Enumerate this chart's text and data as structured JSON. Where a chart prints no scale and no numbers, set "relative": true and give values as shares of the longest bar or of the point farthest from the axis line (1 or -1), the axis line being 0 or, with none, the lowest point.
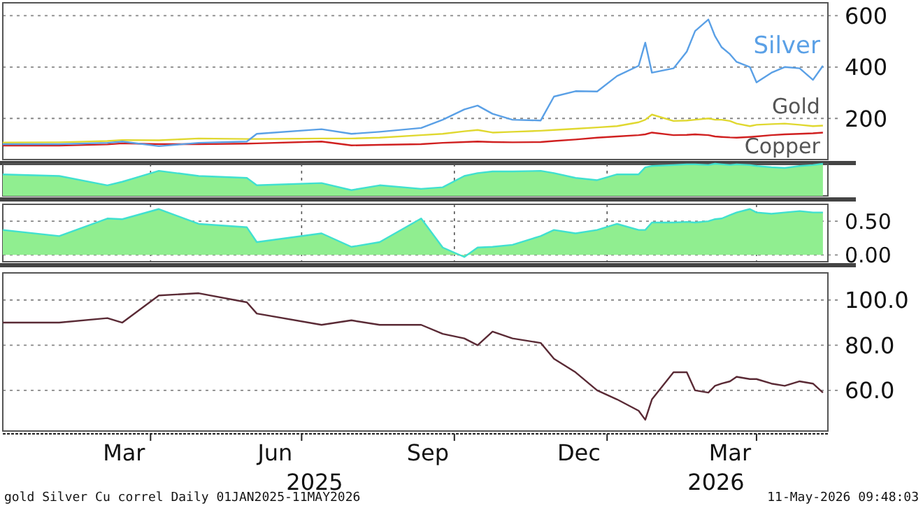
{
  "chart_data": [
    {
      "type": "line",
      "xlim": [
        "2025-01-02",
        "2026-05-14"
      ],
      "ylim": [
        40,
        650
      ],
      "yticks": [
        200,
        400,
        600
      ],
      "grid": "y",
      "tick_labels": "y",
      "x": [
        "2025-01-02",
        "2025-02-05",
        "2025-03-06",
        "2025-03-15",
        "2025-04-06",
        "2025-04-30",
        "2025-05-29",
        "2025-06-04",
        "2025-07-13",
        "2025-07-31",
        "2025-08-17",
        "2025-09-11",
        "2025-09-24",
        "2025-10-07",
        "2025-10-15",
        "2025-10-24",
        "2025-11-05",
        "2025-11-22",
        "2025-11-30",
        "2025-12-13",
        "2025-12-26",
        "2026-01-07",
        "2026-01-20",
        "2026-01-24",
        "2026-01-28",
        "2026-02-10",
        "2026-02-18",
        "2026-02-23",
        "2026-03-03",
        "2026-03-07",
        "2026-03-11",
        "2026-03-16",
        "2026-03-20",
        "2026-03-28",
        "2026-04-01",
        "2026-04-10",
        "2026-04-18",
        "2026-04-27",
        "2026-05-05",
        "2026-05-11"
      ],
      "series": [
        {
          "name": "Silver",
          "color": "#5aa0e6",
          "values": [
            100,
            100,
            105,
            110,
            92,
            105,
            110,
            140,
            158,
            140,
            148,
            163,
            195,
            235,
            250,
            218,
            195,
            192,
            285,
            306,
            305,
            365,
            405,
            495,
            378,
            395,
            460,
            540,
            585,
            520,
            477,
            450,
            420,
            400,
            340,
            378,
            400,
            395,
            350,
            405
          ]
        },
        {
          "name": "Gold",
          "color": "#e0d830",
          "values": [
            106,
            107,
            112,
            116,
            115,
            122,
            120,
            120,
            122,
            122,
            125,
            135,
            140,
            150,
            155,
            145,
            148,
            152,
            155,
            160,
            165,
            170,
            185,
            195,
            215,
            190,
            192,
            195,
            200,
            195,
            195,
            190,
            180,
            170,
            175,
            178,
            180,
            175,
            170,
            172
          ]
        },
        {
          "name": "Copper",
          "color": "#d02020",
          "values": [
            94,
            94,
            99,
            103,
            100,
            100,
            102,
            103,
            110,
            95,
            97,
            100,
            105,
            108,
            110,
            108,
            107,
            108,
            112,
            118,
            125,
            130,
            135,
            138,
            145,
            135,
            136,
            138,
            135,
            130,
            128,
            126,
            125,
            128,
            130,
            135,
            138,
            140,
            142,
            145
          ]
        }
      ]
    },
    {
      "type": "area",
      "relative": true,
      "xlim": [
        "2025-01-02",
        "2026-05-14"
      ],
      "grid": "x",
      "tick_labels": false,
      "xticks": [
        {
          "value": "2025-04-01",
          "label": null
        },
        {
          "value": "2025-07-01",
          "label": null
        },
        {
          "value": "2025-10-01",
          "label": null
        },
        {
          "value": "2026-01-01",
          "label": null
        },
        {
          "value": "2026-04-01",
          "label": null
        }
      ],
      "x": [
        "2025-01-02",
        "2025-02-05",
        "2025-03-06",
        "2025-03-15",
        "2025-04-06",
        "2025-04-30",
        "2025-05-29",
        "2025-06-04",
        "2025-07-13",
        "2025-07-31",
        "2025-08-17",
        "2025-09-11",
        "2025-09-24",
        "2025-10-07",
        "2025-10-15",
        "2025-10-24",
        "2025-11-05",
        "2025-11-22",
        "2025-11-30",
        "2025-12-13",
        "2025-12-26",
        "2026-01-07",
        "2026-01-20",
        "2026-01-24",
        "2026-01-28",
        "2026-02-10",
        "2026-02-18",
        "2026-02-23",
        "2026-03-03",
        "2026-03-07",
        "2026-03-11",
        "2026-03-16",
        "2026-03-20",
        "2026-03-28",
        "2026-04-01",
        "2026-04-10",
        "2026-04-18",
        "2026-04-27",
        "2026-05-05",
        "2026-05-11"
      ],
      "series": [
        {
          "color": "#90ee90",
          "values": [
            0.67,
            0.62,
            0.33,
            0.44,
            0.78,
            0.62,
            0.56,
            0.33,
            0.4,
            0.18,
            0.33,
            0.22,
            0.27,
            0.62,
            0.71,
            0.76,
            0.76,
            0.78,
            0.71,
            0.56,
            0.49,
            0.67,
            0.67,
            0.89,
            0.93,
            0.96,
            0.98,
            0.98,
            0.96,
            1,
            0.98,
            0.96,
            0.98,
            0.96,
            0.93,
            0.89,
            0.87,
            0.93,
            0.96,
            1
          ]
        }
      ]
    },
    {
      "type": "area",
      "xlim": [
        "2025-01-02",
        "2026-05-14"
      ],
      "ylim": [
        -0.1,
        0.75
      ],
      "yticks": [
        {
          "value": 0,
          "label": "0.00"
        },
        {
          "value": 0.5,
          "label": "0.50"
        }
      ],
      "grid": true,
      "tick_labels": "y",
      "xticks": [
        {
          "value": "2025-04-01",
          "label": null
        },
        {
          "value": "2025-07-01",
          "label": null
        },
        {
          "value": "2025-10-01",
          "label": null
        },
        {
          "value": "2026-01-01",
          "label": null
        },
        {
          "value": "2026-04-01",
          "label": null
        }
      ],
      "x": [
        "2025-01-02",
        "2025-02-05",
        "2025-03-06",
        "2025-03-15",
        "2025-04-06",
        "2025-04-30",
        "2025-05-29",
        "2025-06-04",
        "2025-07-13",
        "2025-07-31",
        "2025-08-17",
        "2025-09-11",
        "2025-09-24",
        "2025-10-07",
        "2025-10-15",
        "2025-10-24",
        "2025-11-05",
        "2025-11-22",
        "2025-11-30",
        "2025-12-13",
        "2025-12-26",
        "2026-01-07",
        "2026-01-20",
        "2026-01-24",
        "2026-01-28",
        "2026-02-10",
        "2026-02-18",
        "2026-02-23",
        "2026-03-03",
        "2026-03-07",
        "2026-03-11",
        "2026-03-16",
        "2026-03-20",
        "2026-03-28",
        "2026-04-01",
        "2026-04-10",
        "2026-04-18",
        "2026-04-27",
        "2026-05-05",
        "2026-05-11"
      ],
      "series": [
        {
          "color": "#90ee90",
          "values": [
            0.37,
            0.28,
            0.54,
            0.53,
            0.68,
            0.46,
            0.41,
            0.19,
            0.32,
            0.12,
            0.19,
            0.54,
            0.11,
            -0.03,
            0.11,
            0.12,
            0.15,
            0.28,
            0.37,
            0.32,
            0.37,
            0.46,
            0.37,
            0.37,
            0.48,
            0.48,
            0.49,
            0.48,
            0.5,
            0.53,
            0.54,
            0.59,
            0.63,
            0.68,
            0.63,
            0.61,
            0.63,
            0.65,
            0.63,
            0.63
          ]
        }
      ]
    },
    {
      "type": "line",
      "xlim": [
        "2025-01-02",
        "2026-05-14"
      ],
      "ylim": [
        42,
        112
      ],
      "yticks": [
        {
          "value": 60,
          "label": "60.0"
        },
        {
          "value": 80,
          "label": "80.0"
        },
        {
          "value": 100,
          "label": "100.0"
        }
      ],
      "grid": "y",
      "xticks": [
        {
          "value": "2025-03-16",
          "label": "Mar"
        },
        {
          "value": "2025-04-01",
          "label": null
        },
        {
          "value": "2025-06-15",
          "label": "Jun"
        },
        {
          "value": "2025-07-01",
          "label": null
        },
        {
          "value": "2025-09-15",
          "label": "Sep"
        },
        {
          "value": "2025-10-01",
          "label": null
        },
        {
          "value": "2025-12-15",
          "label": "Dec"
        },
        {
          "value": "2026-01-01",
          "label": null
        },
        {
          "value": "2026-03-16",
          "label": "Mar"
        },
        {
          "value": "2026-04-01",
          "label": null
        }
      ],
      "x": [
        "2025-01-02",
        "2025-02-05",
        "2025-03-06",
        "2025-03-15",
        "2025-04-06",
        "2025-04-30",
        "2025-05-29",
        "2025-06-04",
        "2025-07-13",
        "2025-07-31",
        "2025-08-17",
        "2025-09-11",
        "2025-09-24",
        "2025-10-07",
        "2025-10-15",
        "2025-10-24",
        "2025-11-05",
        "2025-11-22",
        "2025-11-30",
        "2025-12-13",
        "2025-12-26",
        "2026-01-07",
        "2026-01-20",
        "2026-01-24",
        "2026-01-28",
        "2026-02-10",
        "2026-02-18",
        "2026-02-23",
        "2026-03-03",
        "2026-03-07",
        "2026-03-11",
        "2026-03-16",
        "2026-03-20",
        "2026-03-28",
        "2026-04-01",
        "2026-04-10",
        "2026-04-18",
        "2026-04-27",
        "2026-05-05",
        "2026-05-11"
      ],
      "series": [
        {
          "color": "#5a2a35",
          "values": [
            90,
            90,
            92,
            90,
            102,
            103,
            99,
            94,
            89,
            91,
            89,
            89,
            85,
            83,
            80,
            86,
            83,
            81,
            74,
            68,
            60,
            56,
            51,
            47,
            56,
            68,
            68,
            60,
            59,
            62,
            63,
            64,
            66,
            65,
            65,
            63,
            62,
            64,
            63,
            59
          ]
        }
      ],
      "annotations": [
        "gold Silver Cu correl Daily 01JAN2025-11MAY2026",
        "11-May-2026 09:48:03",
        "2025",
        "2026"
      ]
    }
  ]
}
